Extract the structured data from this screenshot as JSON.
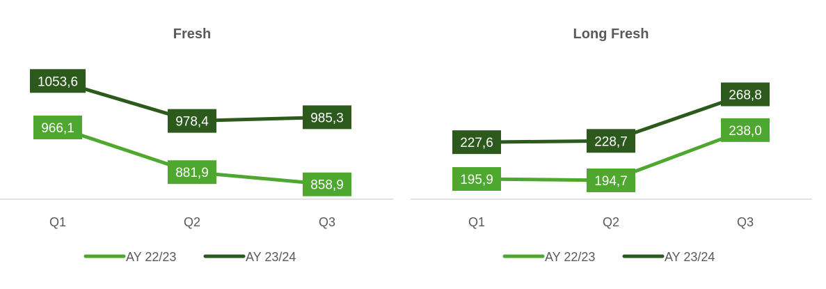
{
  "colors": {
    "series1": "#4ea72e",
    "series2": "#2b5a1c",
    "axis": "#d9d9d9",
    "text": "#595959"
  },
  "chart_data": [
    {
      "type": "line",
      "title": "Fresh",
      "categories": [
        "Q1",
        "Q2",
        "Q3"
      ],
      "series": [
        {
          "name": "AY 22/23",
          "values": [
            966.1,
            881.9,
            858.9
          ],
          "labels": [
            "966,1",
            "881,9",
            "858,9"
          ]
        },
        {
          "name": "AY 23/24",
          "values": [
            1053.6,
            978.4,
            985.3
          ],
          "labels": [
            "1053,6",
            "978,4",
            "985,3"
          ]
        }
      ],
      "legend": "bottom",
      "grid": false
    },
    {
      "type": "line",
      "title": "Long Fresh",
      "categories": [
        "Q1",
        "Q2",
        "Q3"
      ],
      "series": [
        {
          "name": "AY 22/23",
          "values": [
            195.9,
            194.7,
            238.0
          ],
          "labels": [
            "195,9",
            "194,7",
            "238,0"
          ]
        },
        {
          "name": "AY 23/24",
          "values": [
            227.6,
            228.7,
            268.8
          ],
          "labels": [
            "227,6",
            "228,7",
            "268,8"
          ]
        }
      ],
      "legend": "bottom",
      "grid": false
    }
  ]
}
